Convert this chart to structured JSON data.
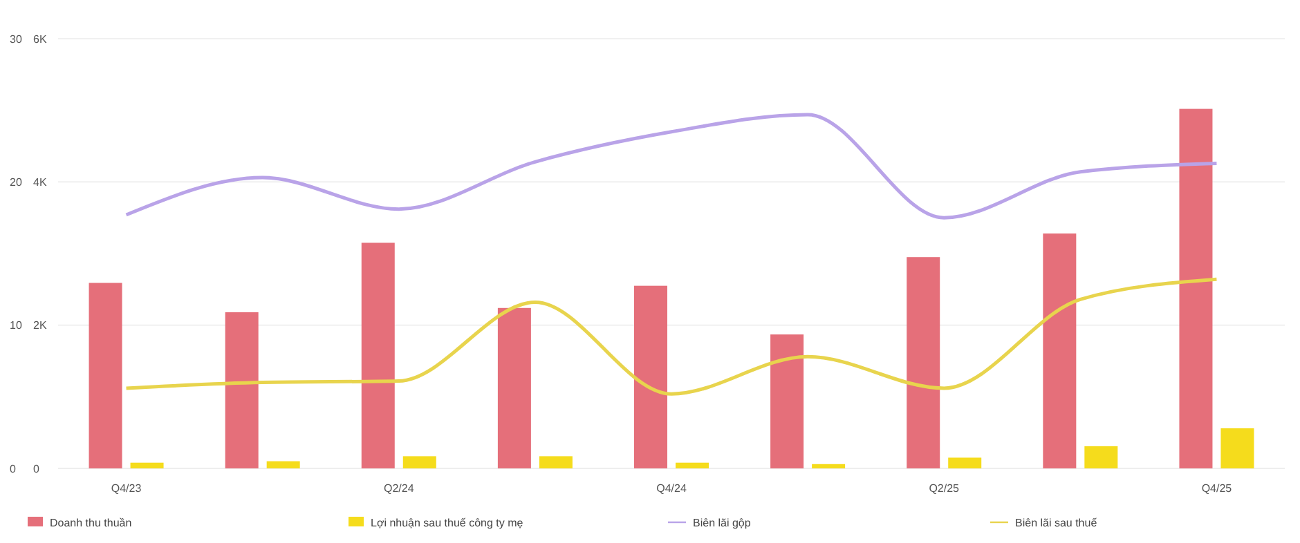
{
  "chart_data": {
    "type": "bar",
    "categories": [
      "Q4/23",
      null,
      "Q2/24",
      null,
      "Q4/24",
      null,
      "Q2/25",
      null,
      "Q4/25"
    ],
    "series": [
      {
        "name": "Doanh thu thuần",
        "color": "#e56f7a",
        "values": [
          2590,
          2180,
          3150,
          2240,
          2550,
          1870,
          2950,
          3280,
          5020
        ]
      },
      {
        "name": "Lợi nhuận sau thuế công ty mẹ",
        "color": "#f5dc1c",
        "values": [
          80,
          100,
          170,
          170,
          80,
          60,
          150,
          310,
          560
        ]
      },
      {
        "name": "Biên lãi gộp",
        "type": "line",
        "axis": "y2",
        "color": "#b9a3e8",
        "values": [
          17.7,
          20.3,
          18.1,
          21.4,
          23.5,
          24.7,
          17.5,
          20.7,
          21.3
        ]
      },
      {
        "name": "Biên lãi sau thuế",
        "type": "line",
        "axis": "y2",
        "color": "#e8d44d",
        "values": [
          5.6,
          6.0,
          6.1,
          11.6,
          5.2,
          7.8,
          5.6,
          11.8,
          13.2
        ]
      }
    ],
    "ylim": [
      0,
      6000
    ],
    "yticks": [
      {
        "value": 0,
        "label": "0"
      },
      {
        "value": 2000,
        "label": "2K"
      },
      {
        "value": 4000,
        "label": "4K"
      },
      {
        "value": 6000,
        "label": "6K"
      }
    ],
    "y2lim": [
      0,
      30
    ],
    "y2ticks": [
      0,
      10,
      20,
      30
    ],
    "grid": "y",
    "legend": "bottom",
    "marker": "none",
    "line_style": "solid"
  }
}
